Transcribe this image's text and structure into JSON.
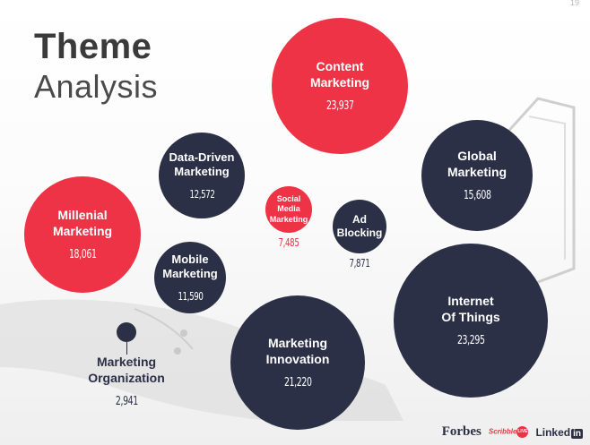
{
  "title": {
    "line1": "Theme",
    "line2": "Analysis"
  },
  "page_number": "19",
  "logos": {
    "forbes": "Forbes",
    "scribble": "Scribble",
    "scribble_live": "LIVE",
    "linkedin": "Linked",
    "linkedin_in": "in"
  },
  "colors": {
    "red": "#ee3346",
    "navy": "#2b3046"
  },
  "chart_data": {
    "type": "bubble",
    "title": "Theme Analysis",
    "bubbles": [
      {
        "name": "Content\nMarketing",
        "value": 23937,
        "label": "23,937",
        "color": "red"
      },
      {
        "name": "Internet\nOf Things",
        "value": 23295,
        "label": "23,295",
        "color": "navy"
      },
      {
        "name": "Marketing\nInnovation",
        "value": 21220,
        "label": "21,220",
        "color": "navy"
      },
      {
        "name": "Millenial\nMarketing",
        "value": 18061,
        "label": "18,061",
        "color": "red"
      },
      {
        "name": "Global\nMarketing",
        "value": 15608,
        "label": "15,608",
        "color": "navy"
      },
      {
        "name": "Data-Driven\nMarketing",
        "value": 12572,
        "label": "12,572",
        "color": "navy"
      },
      {
        "name": "Mobile\nMarketing",
        "value": 11590,
        "label": "11,590",
        "color": "navy"
      },
      {
        "name": "Ad\nBlocking",
        "value": 7871,
        "label": "7,871",
        "color": "navy"
      },
      {
        "name": "Social\nMedia\nMarketing",
        "value": 7485,
        "label": "7,485",
        "color": "red"
      },
      {
        "name": "Marketing\nOrganization",
        "value": 2941,
        "label": "2,941",
        "color": "navy"
      }
    ]
  }
}
